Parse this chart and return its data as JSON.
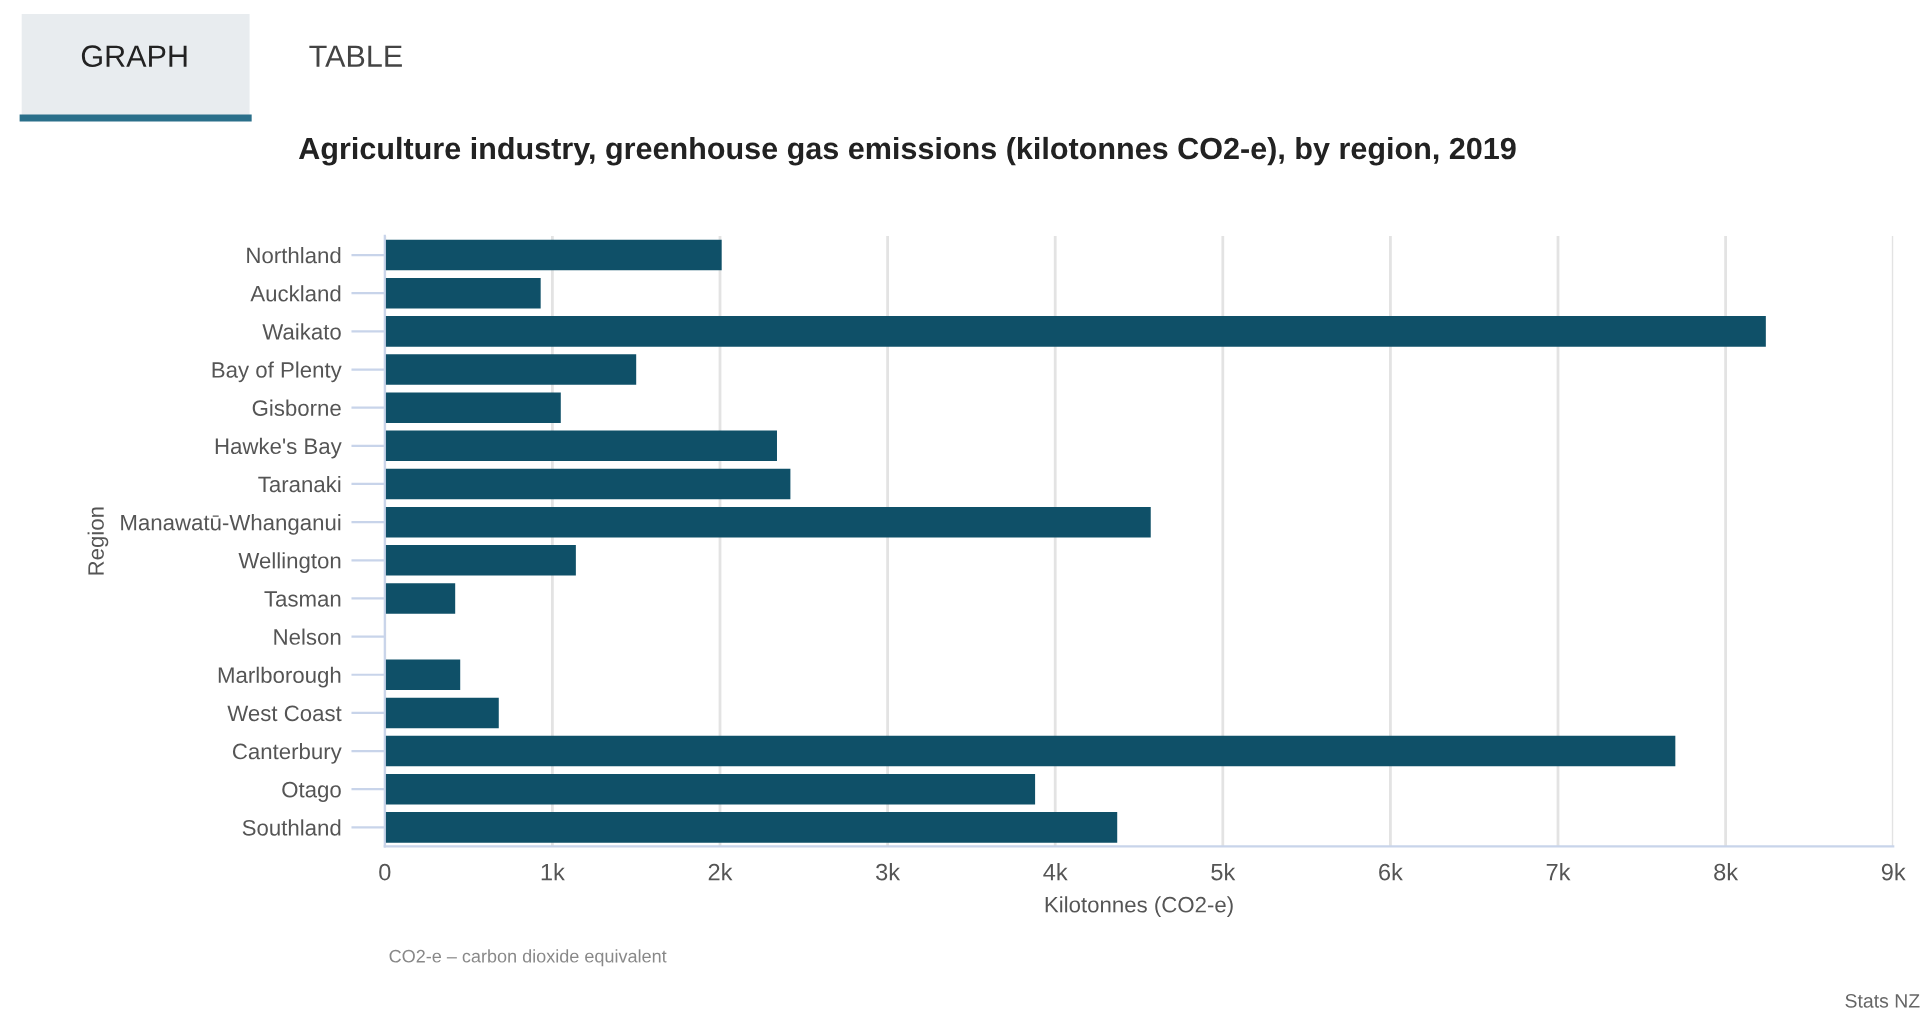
{
  "chart_data": {
    "type": "bar",
    "orientation": "horizontal",
    "title": "Agriculture industry, greenhouse gas emissions (kilotonnes CO2-e), by region, 2019",
    "xlabel": "Kilotonnes (CO2-e)",
    "ylabel": "Region",
    "categories": [
      "Northland",
      "Auckland",
      "Waikato",
      "Bay of Plenty",
      "Gisborne",
      "Hawke's Bay",
      "Taranaki",
      "Manawatū-Whanganui",
      "Wellington",
      "Tasman",
      "Nelson",
      "Marlborough",
      "West Coast",
      "Canterbury",
      "Otago",
      "Southland"
    ],
    "values": [
      2010,
      930,
      8240,
      1500,
      1050,
      2340,
      2420,
      4570,
      1140,
      420,
      null,
      450,
      680,
      7700,
      3880,
      4370
    ],
    "color": "#0f5068",
    "xlim": [
      0,
      9000
    ],
    "xticks": [
      0,
      {
        "value": 1000,
        "label": "1k"
      },
      {
        "value": 2000,
        "label": "2k"
      },
      {
        "value": 3000,
        "label": "3k"
      },
      {
        "value": 4000,
        "label": "4k"
      },
      {
        "value": 5000,
        "label": "5k"
      },
      {
        "value": 6000,
        "label": "6k"
      },
      {
        "value": 7000,
        "label": "7k"
      },
      {
        "value": 8000,
        "label": "8k"
      },
      {
        "value": 9000,
        "label": "9k"
      }
    ],
    "grid": "x",
    "annotations": [
      "GRAPH",
      "TABLE",
      "CO2-e – carbon dioxide equivalent",
      "Stats NZ"
    ]
  }
}
